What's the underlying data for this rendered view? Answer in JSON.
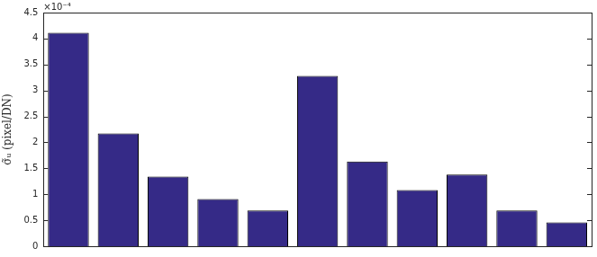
{
  "chart_data": {
    "type": "bar",
    "y_label": "σ̃ᵤ (pixel/DN)",
    "annotation": "×10⁻⁴",
    "categories": [
      null,
      null,
      null,
      null,
      null,
      null,
      null,
      null,
      null,
      null,
      null
    ],
    "values": [
      0.000411,
      0.000217,
      0.000134,
      9.1e-05,
      6.9e-05,
      0.000328,
      0.000163,
      0.000108,
      0.000138,
      6.9e-05,
      4.6e-05
    ],
    "color": "#352a87",
    "ylim": [
      0,
      0.00045
    ],
    "yticks": [
      0,
      {
        "value": 5e-05,
        "label": "0.5"
      },
      {
        "value": 0.0001,
        "label": "1"
      },
      {
        "value": 0.00015,
        "label": "1.5"
      },
      {
        "value": 0.0002,
        "label": "2"
      },
      {
        "value": 0.00025,
        "label": "2.5"
      },
      {
        "value": 0.0003,
        "label": "3"
      },
      {
        "value": 0.00035,
        "label": "3.5"
      },
      {
        "value": 0.0004,
        "label": "4"
      },
      {
        "value": 0.00045,
        "label": "4.5"
      }
    ],
    "grid": false,
    "tick_labels": "y"
  }
}
